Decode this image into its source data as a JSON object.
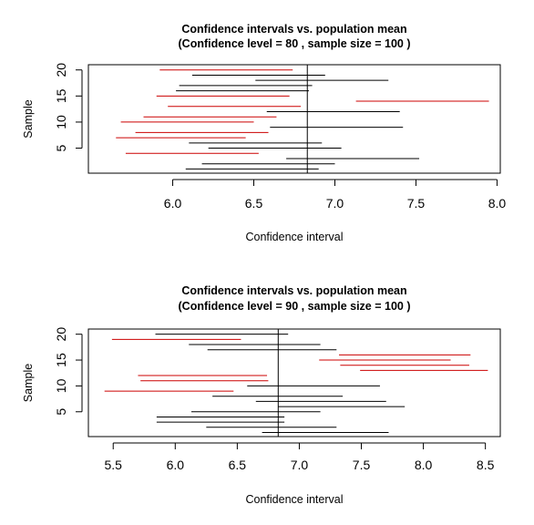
{
  "chart_data": [
    {
      "type": "interval",
      "title": "Confidence intervals vs. population mean",
      "subtitle": "(Confidence level = 80 , sample size = 100  )",
      "xlabel": "Confidence interval",
      "ylabel": "Sample",
      "xlim": [
        5.48,
        8.02
      ],
      "ylim": [
        0.2,
        21.0
      ],
      "x_ticks": [
        "6.0",
        "6.5",
        "7.0",
        "7.5",
        "8.0"
      ],
      "y_ticks": [
        "5",
        "10",
        "15",
        "20"
      ],
      "population_mean": 6.83,
      "miss_color": "#cc0000",
      "hit_color": "#000000",
      "intervals": [
        {
          "sample": 1,
          "lower": 6.08,
          "upper": 6.9,
          "covers": true
        },
        {
          "sample": 2,
          "lower": 6.18,
          "upper": 7.0,
          "covers": true
        },
        {
          "sample": 3,
          "lower": 6.7,
          "upper": 7.52,
          "covers": true
        },
        {
          "sample": 4,
          "lower": 5.71,
          "upper": 6.53,
          "covers": false
        },
        {
          "sample": 5,
          "lower": 6.22,
          "upper": 7.04,
          "covers": true
        },
        {
          "sample": 6,
          "lower": 6.1,
          "upper": 6.92,
          "covers": true
        },
        {
          "sample": 7,
          "lower": 5.65,
          "upper": 6.45,
          "covers": false
        },
        {
          "sample": 8,
          "lower": 5.77,
          "upper": 6.59,
          "covers": false
        },
        {
          "sample": 9,
          "lower": 6.6,
          "upper": 7.42,
          "covers": true
        },
        {
          "sample": 10,
          "lower": 5.68,
          "upper": 6.5,
          "covers": false
        },
        {
          "sample": 11,
          "lower": 5.82,
          "upper": 6.64,
          "covers": false
        },
        {
          "sample": 12,
          "lower": 6.58,
          "upper": 7.4,
          "covers": true
        },
        {
          "sample": 13,
          "lower": 5.97,
          "upper": 6.79,
          "covers": false
        },
        {
          "sample": 14,
          "lower": 7.13,
          "upper": 7.95,
          "covers": false
        },
        {
          "sample": 15,
          "lower": 5.9,
          "upper": 6.72,
          "covers": false
        },
        {
          "sample": 16,
          "lower": 6.02,
          "upper": 6.84,
          "covers": true
        },
        {
          "sample": 17,
          "lower": 6.04,
          "upper": 6.86,
          "covers": true
        },
        {
          "sample": 18,
          "lower": 6.51,
          "upper": 7.33,
          "covers": true
        },
        {
          "sample": 19,
          "lower": 6.12,
          "upper": 6.94,
          "covers": true
        },
        {
          "sample": 20,
          "lower": 5.92,
          "upper": 6.74,
          "covers": false
        }
      ]
    },
    {
      "type": "interval",
      "title": "Confidence intervals vs. population mean",
      "subtitle": "(Confidence level = 90 , sample size = 100  )",
      "xlabel": "Confidence interval",
      "ylabel": "Sample",
      "xlim": [
        5.3,
        8.62
      ],
      "ylim": [
        0.2,
        21.0
      ],
      "x_ticks": [
        "5.5",
        "6.0",
        "6.5",
        "7.0",
        "7.5",
        "8.0",
        "8.5"
      ],
      "y_ticks": [
        "5",
        "10",
        "15",
        "20"
      ],
      "population_mean": 6.83,
      "miss_color": "#cc0000",
      "hit_color": "#000000",
      "intervals": [
        {
          "sample": 1,
          "lower": 6.7,
          "upper": 7.72,
          "covers": true
        },
        {
          "sample": 2,
          "lower": 6.25,
          "upper": 7.3,
          "covers": true
        },
        {
          "sample": 3,
          "lower": 5.85,
          "upper": 6.88,
          "covers": true
        },
        {
          "sample": 4,
          "lower": 5.85,
          "upper": 6.88,
          "covers": true
        },
        {
          "sample": 5,
          "lower": 6.13,
          "upper": 7.17,
          "covers": true
        },
        {
          "sample": 6,
          "lower": 6.83,
          "upper": 7.85,
          "covers": true
        },
        {
          "sample": 7,
          "lower": 6.65,
          "upper": 7.7,
          "covers": true
        },
        {
          "sample": 8,
          "lower": 6.3,
          "upper": 7.35,
          "covers": true
        },
        {
          "sample": 9,
          "lower": 5.43,
          "upper": 6.47,
          "covers": false
        },
        {
          "sample": 10,
          "lower": 6.58,
          "upper": 7.65,
          "covers": true
        },
        {
          "sample": 11,
          "lower": 5.72,
          "upper": 6.75,
          "covers": false
        },
        {
          "sample": 12,
          "lower": 5.7,
          "upper": 6.74,
          "covers": false
        },
        {
          "sample": 13,
          "lower": 7.49,
          "upper": 8.52,
          "covers": false
        },
        {
          "sample": 14,
          "lower": 7.33,
          "upper": 8.37,
          "covers": false
        },
        {
          "sample": 15,
          "lower": 7.16,
          "upper": 8.22,
          "covers": false
        },
        {
          "sample": 16,
          "lower": 7.32,
          "upper": 8.38,
          "covers": false
        },
        {
          "sample": 17,
          "lower": 6.26,
          "upper": 7.3,
          "covers": true
        },
        {
          "sample": 18,
          "lower": 6.11,
          "upper": 7.17,
          "covers": true
        },
        {
          "sample": 19,
          "lower": 5.49,
          "upper": 6.53,
          "covers": false
        },
        {
          "sample": 20,
          "lower": 5.84,
          "upper": 6.91,
          "covers": true
        }
      ]
    }
  ]
}
